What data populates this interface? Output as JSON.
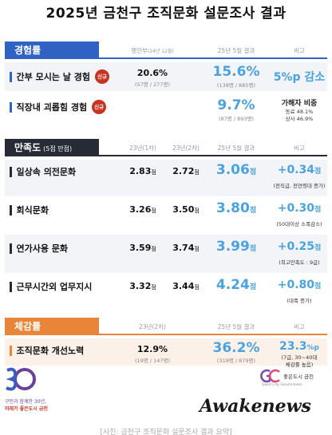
{
  "title": "2025년 금천구 조직문화 설문조사 결과",
  "sections": {
    "experience": {
      "label": "경험률",
      "columns": {
        "prev": "행안부",
        "prev_note": "(24년 12월)",
        "current": "25년 5월 결과",
        "note": "비고"
      },
      "rows": [
        {
          "label": "간부 모시는 날 경험",
          "badge": "신규",
          "prev": "20.6%",
          "prev_sub": "(57명 / 277명)",
          "current": "15.6%",
          "current_sub": "(138명 / 885명)",
          "note": "5%p 감소"
        },
        {
          "label": "직장내 괴롭힘 경험",
          "badge": "신규",
          "current": "9.7%",
          "current_sub": "(87명 / 893명)",
          "note_title": "가해자 비중",
          "note_line1": "동료 48.1%",
          "note_line2": "상사 46.9%"
        }
      ]
    },
    "satisfaction": {
      "label": "만족도",
      "label_note": "(5점 만점)",
      "columns": {
        "first": "23년(1차)",
        "second": "23년(2차)",
        "current": "25년 5월 결과",
        "note": "비고"
      },
      "unit": "점",
      "rows": [
        {
          "label": "일상속 의전문화",
          "first": "2.83",
          "second": "2.72",
          "current": "3.06",
          "diff": "+0.34",
          "diff_note": "(전직급, 전연령대 증가)"
        },
        {
          "label": "회식문화",
          "first": "3.26",
          "second": "3.50",
          "current": "3.80",
          "diff": "+0.30",
          "diff_note": "(50대이상 소폭감소)"
        },
        {
          "label": "연가사용 문화",
          "first": "3.59",
          "second": "3.74",
          "current": "3.99",
          "diff": "+0.25",
          "diff_note": "(최고만족도 : 9급)"
        },
        {
          "label": "근무시간외 업무지시",
          "first": "3.32",
          "second": "3.44",
          "current": "4.24",
          "diff": "+0.80",
          "diff_note": "(대폭 증가)"
        }
      ]
    },
    "perception": {
      "label": "체감률",
      "columns": {
        "prev": "23년(2차)",
        "current": "25년 5월 결과",
        "note": "비고"
      },
      "rows": [
        {
          "label": "조직문화 개선노력",
          "prev": "12.9%",
          "prev_sub": "(19명 / 147명)",
          "current": "36.2%",
          "current_sub": "(318명 / 879명)",
          "note": "23.3",
          "note_unit": "%p",
          "note_line1": "(7급, 30~40대",
          "note_line2": "체감률 높음)"
        }
      ]
    }
  },
  "footer": {
    "left_logo_num": "30",
    "left_logo_line1": "구민과 함께한 30년,",
    "left_logo_line2": "미래가 좋은도시 금천",
    "right_logo_text": "좋은도시 금천",
    "right_logo_sub": "Good City Geumcheon",
    "watermark": "Awakenews",
    "caption": "[사진: 금천구 조직문화 설문조사 결과 요약]"
  },
  "colors": {
    "blue": "#2f62c2",
    "dark": "#262b36",
    "orange": "#e98538",
    "accent": "#4aa3de",
    "badge": "#c83322"
  }
}
